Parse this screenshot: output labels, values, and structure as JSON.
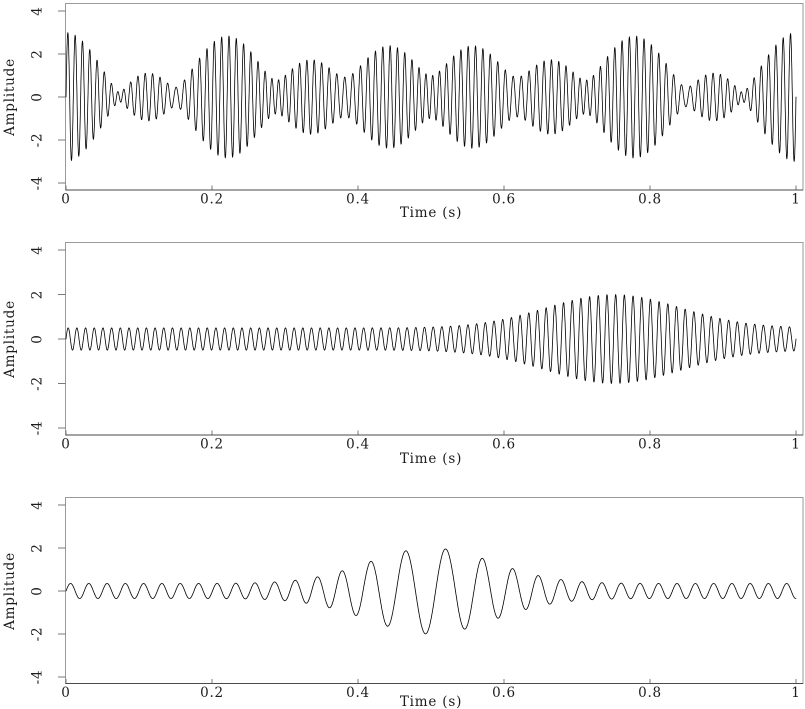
{
  "figure": {
    "background": "#ffffff",
    "waveform_color": "#000000",
    "frame_color": "#9a9a9a",
    "axis_line_color": "#4a4a4a",
    "tick_color": "#7a7a7a",
    "text_color": "#1c1c1c"
  },
  "chart_data": [
    {
      "type": "line",
      "panel": "composite-beating-signal",
      "title": "",
      "xlabel": "Time (s)",
      "ylabel": "Amplitude",
      "xlim": [
        0,
        1
      ],
      "ylim": [
        -4,
        4
      ],
      "xticks": [
        0,
        0.2,
        0.4,
        0.6,
        0.8,
        1
      ],
      "xtick_labels": [
        "0",
        "0.2",
        "0.4",
        "0.6",
        "0.8",
        "1"
      ],
      "yticks": [
        4,
        2,
        0,
        -2,
        -4
      ],
      "ytick_labels": [
        "4",
        "2",
        "0",
        "-2",
        "-4"
      ],
      "grid": false,
      "legend": null,
      "line_color": "#000000",
      "signal": {
        "kind": "sum_of_sines",
        "components": [
          {
            "amplitude": 1.0,
            "frequency_hz": 95
          },
          {
            "amplitude": 1.0,
            "frequency_hz": 100
          },
          {
            "amplitude": 1.0,
            "frequency_hz": 104
          }
        ],
        "peak_amplitude": 3.0,
        "beat_period_s": 0.25,
        "description": "Dense ~100 Hz oscillation with beating envelope peaking near 3 at t≈0, 0.25, 0.5, 0.75, 1 and waists near 1 between beats"
      }
    },
    {
      "type": "line",
      "panel": "high-frequency-component",
      "title": "",
      "xlabel": "Time (s)",
      "ylabel": "Amplitude",
      "xlim": [
        0,
        1
      ],
      "ylim": [
        -4,
        4
      ],
      "xticks": [
        0,
        0.2,
        0.4,
        0.6,
        0.8,
        1
      ],
      "xtick_labels": [
        "0",
        "0.2",
        "0.4",
        "0.6",
        "0.8",
        "1"
      ],
      "yticks": [
        4,
        2,
        0,
        -2,
        -4
      ],
      "ytick_labels": [
        "4",
        "2",
        "0",
        "-2",
        "-4"
      ],
      "grid": false,
      "legend": null,
      "line_color": "#000000",
      "signal": {
        "kind": "am_sine",
        "carrier_hz": 84,
        "envelope": {
          "base": 0.5,
          "peak_gain": 1.5,
          "center_s": 0.75,
          "width_s": 0.13
        },
        "peak_amplitude": 2.0,
        "description": "~84 Hz oscillation, amplitude ≈0.5 for t<0.5 swelling to ≈2 around t≈0.75 then shrinking toward ≈0.6 at t=1"
      }
    },
    {
      "type": "line",
      "panel": "low-frequency-component",
      "title": "",
      "xlabel": "Time (s)",
      "ylabel": "Amplitude",
      "xlim": [
        0,
        1
      ],
      "ylim": [
        -4,
        4
      ],
      "xticks": [
        0,
        0.2,
        0.4,
        0.6,
        0.8,
        1
      ],
      "xtick_labels": [
        "0",
        "0.2",
        "0.4",
        "0.6",
        "0.8",
        "1"
      ],
      "yticks": [
        4,
        2,
        0,
        -2,
        -4
      ],
      "ytick_labels": [
        "4",
        "2",
        "0",
        "-2",
        "-4"
      ],
      "grid": false,
      "legend": null,
      "line_color": "#000000",
      "signal": {
        "kind": "am_fm_sine",
        "envelope": {
          "base": 0.35,
          "peak_gain": 1.65,
          "center_s": 0.5,
          "width_s": 0.12
        },
        "frequency_hz": {
          "base": 40,
          "dip": 22,
          "center_s": 0.5,
          "width_s": 0.16
        },
        "peak_amplitude": 2.0,
        "description": "Slow oscillation ~40 Hz at the edges slowing to ~18 Hz mid-record; amplitude ≈0.35 at edges swelling to ≈2 at t≈0.5"
      }
    }
  ]
}
